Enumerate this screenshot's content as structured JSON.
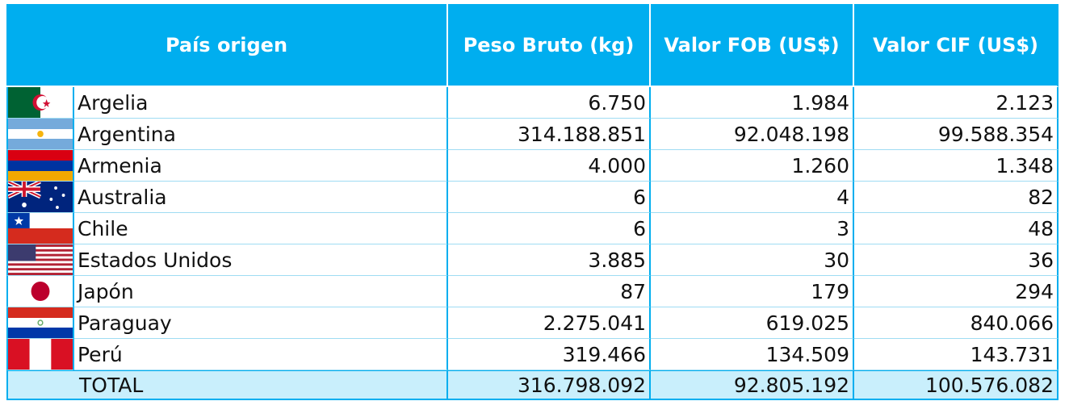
{
  "table": {
    "header": [
      "País origen",
      "Peso Bruto (kg)",
      "Valor FOB (US$)",
      "Valor CIF (US$)"
    ],
    "rows": [
      [
        "Argelia",
        "6.750",
        "1.984",
        "2.123"
      ],
      [
        "Argentina",
        "314.188.851",
        "92.048.198",
        "99.588.354"
      ],
      [
        "Armenia",
        "4.000",
        "1.260",
        "1.348"
      ],
      [
        "Australia",
        "6",
        "4",
        "82"
      ],
      [
        "Chile",
        "6",
        "3",
        "48"
      ],
      [
        "Estados Unidos",
        "3.885",
        "30",
        "36"
      ],
      [
        "Japón",
        "87",
        "179",
        "294"
      ],
      [
        "Paraguay",
        "2.275.041",
        "619.025",
        "840.066"
      ],
      [
        "Perú",
        "319.466",
        "134.509",
        "143.731"
      ]
    ],
    "total": [
      "TOTAL",
      "316.798.092",
      "92.805.192",
      "100.576.082"
    ]
  }
}
